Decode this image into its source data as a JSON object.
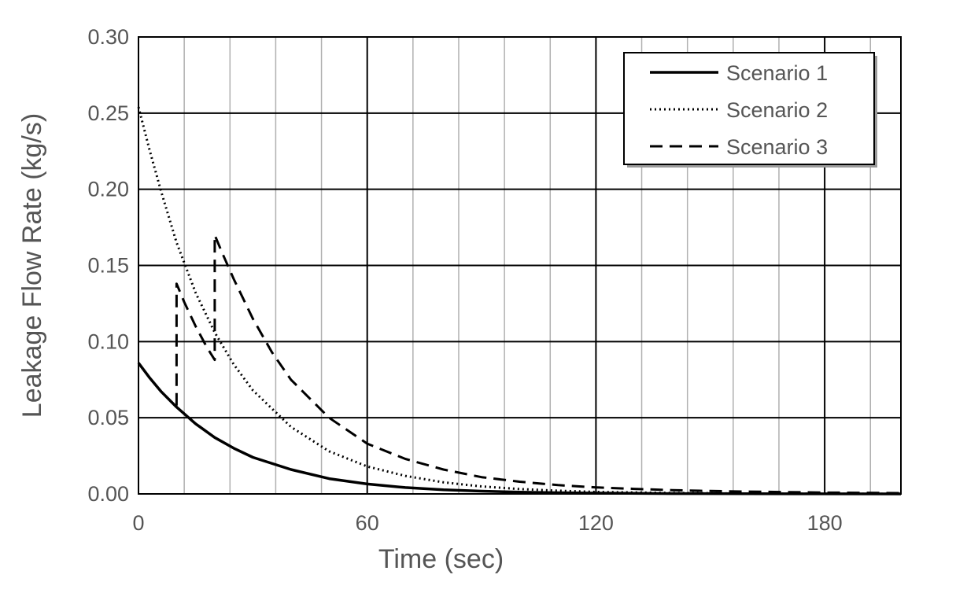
{
  "chart_data": {
    "type": "line",
    "title": "",
    "xlabel": "Time (sec)",
    "ylabel": "Leakage Flow Rate (kg/s)",
    "xlim": [
      0,
      200
    ],
    "ylim": [
      0,
      0.3
    ],
    "x_major_ticks": [
      0,
      60,
      120,
      180
    ],
    "x_tick_labels": [
      "0",
      "60",
      "120",
      "180"
    ],
    "x_minor_step": 12,
    "y_ticks": [
      0.0,
      0.05,
      0.1,
      0.15,
      0.2,
      0.25,
      0.3
    ],
    "y_tick_labels": [
      "0.00",
      "0.05",
      "0.10",
      "0.15",
      "0.20",
      "0.25",
      "0.30"
    ],
    "grid": true,
    "legend_position": "top-right",
    "series": [
      {
        "name": "Scenario 1",
        "style": "solid",
        "color": "#000000",
        "x": [
          0,
          3,
          6,
          10,
          15,
          20,
          25,
          30,
          40,
          50,
          60,
          70,
          80,
          90,
          100,
          110,
          120,
          140,
          160,
          180,
          200
        ],
        "y": [
          0.086,
          0.076,
          0.067,
          0.057,
          0.046,
          0.037,
          0.03,
          0.024,
          0.016,
          0.01,
          0.0065,
          0.0042,
          0.0027,
          0.0018,
          0.0012,
          0.0008,
          0.0005,
          0.0002,
          0.0001,
          5e-05,
          2e-05
        ]
      },
      {
        "name": "Scenario 2",
        "style": "dotted",
        "color": "#000000",
        "x": [
          0,
          3,
          6,
          10,
          15,
          20,
          25,
          30,
          40,
          50,
          60,
          70,
          80,
          90,
          100,
          110,
          120,
          140,
          160,
          180,
          200
        ],
        "y": [
          0.254,
          0.225,
          0.198,
          0.165,
          0.132,
          0.106,
          0.085,
          0.068,
          0.044,
          0.028,
          0.018,
          0.0118,
          0.0076,
          0.0049,
          0.0032,
          0.0021,
          0.0013,
          0.0006,
          0.0002,
          0.0001,
          4e-05
        ]
      },
      {
        "name": "Scenario 3",
        "style": "dashed",
        "color": "#000000",
        "x": [
          10,
          10,
          12,
          15,
          18,
          20,
          20,
          22,
          25,
          30,
          35,
          40,
          50,
          60,
          70,
          80,
          90,
          100,
          110,
          120,
          130,
          140,
          150,
          160,
          170,
          180,
          190,
          200
        ],
        "y": [
          0.058,
          0.138,
          0.126,
          0.11,
          0.096,
          0.088,
          0.17,
          0.158,
          0.141,
          0.115,
          0.093,
          0.075,
          0.05,
          0.033,
          0.023,
          0.016,
          0.011,
          0.008,
          0.0058,
          0.0043,
          0.0033,
          0.0025,
          0.0019,
          0.0015,
          0.0012,
          0.0009,
          0.0007,
          0.0005
        ]
      }
    ]
  }
}
